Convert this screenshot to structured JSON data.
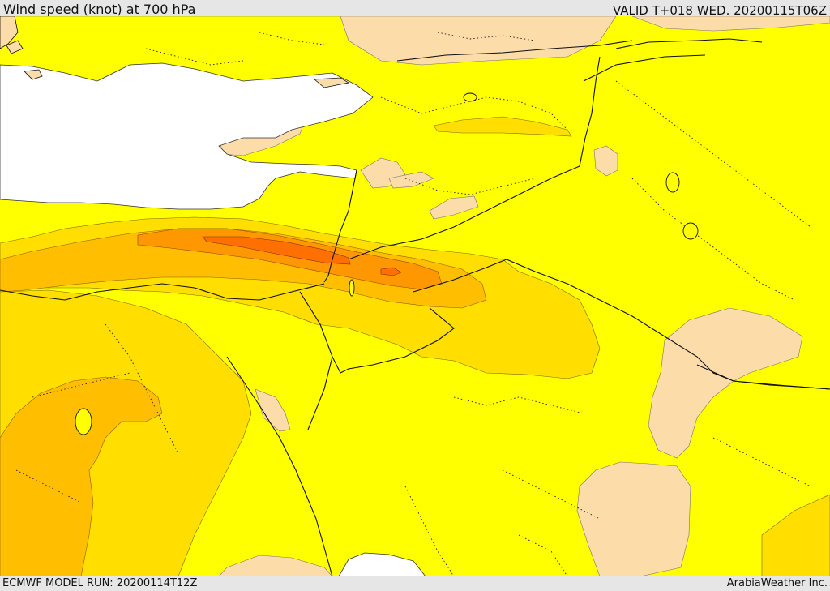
{
  "header": {
    "title": "Wind speed (knot) at 700 hPa",
    "valid": "VALID T+018 WED. 20200115T06Z"
  },
  "footer": {
    "model_run": "ECMWF MODEL RUN: 20200114T12Z",
    "brand": "ArabiaWeather Inc."
  },
  "palette": {
    "sea": "#ffffff",
    "light": "#fcdca8",
    "yellow": "#ffff00",
    "gold": "#ffde00",
    "amber": "#ffbe00",
    "orange": "#ff9800",
    "deep_orange": "#ff7000",
    "border": "#111111"
  }
}
